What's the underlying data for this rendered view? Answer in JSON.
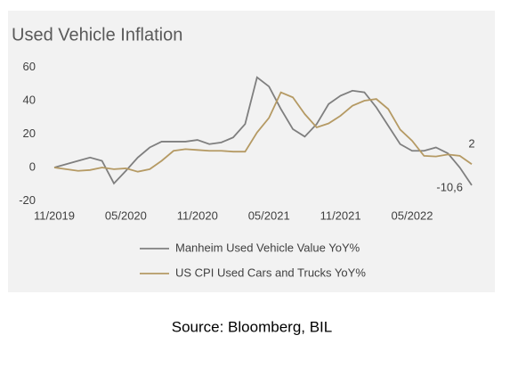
{
  "chart_data": {
    "type": "line",
    "title": "Used Vehicle Inflation",
    "categories": [
      "11/2019",
      null,
      null,
      null,
      null,
      null,
      "05/2020",
      null,
      null,
      null,
      null,
      null,
      "11/2020",
      null,
      null,
      null,
      null,
      null,
      "05/2021",
      null,
      null,
      null,
      null,
      null,
      "11/2021",
      null,
      null,
      null,
      null,
      null,
      "05/2022",
      null,
      null,
      null,
      null,
      null
    ],
    "series": [
      {
        "name": "Manheim Used Vehicle Value YoY%",
        "color": "#7f7f7f",
        "values": [
          0,
          2,
          4,
          6,
          4,
          -9.5,
          -2,
          6,
          12,
          15.5,
          15.5,
          15.5,
          16.5,
          14,
          15,
          18,
          26,
          54,
          48.5,
          35,
          23,
          18.5,
          26,
          38,
          43,
          46,
          45,
          36,
          25,
          14,
          10,
          10,
          12,
          8.5,
          0,
          -10.6
        ],
        "value_labels": [
          null,
          null,
          null,
          null,
          null,
          null,
          null,
          null,
          null,
          null,
          null,
          null,
          null,
          null,
          null,
          null,
          null,
          null,
          null,
          null,
          null,
          null,
          null,
          null,
          null,
          null,
          null,
          null,
          null,
          null,
          null,
          null,
          null,
          null,
          null,
          "-10,6"
        ]
      },
      {
        "name": "US CPI Used Cars and Trucks YoY%",
        "color": "#b59a64",
        "values": [
          0,
          -1,
          -2,
          -1.5,
          0,
          -1,
          -0.5,
          -2.5,
          -1,
          4,
          10,
          11,
          10.5,
          10,
          10,
          9.5,
          9.5,
          21,
          29.7,
          45,
          42,
          32,
          24,
          26.4,
          31,
          37,
          40,
          41,
          35,
          22.7,
          16,
          7,
          6.6,
          7.8,
          7,
          2
        ]
      }
    ],
    "ylim": [
      -20,
      60
    ],
    "yticks": [
      -20,
      0,
      20,
      40,
      60
    ],
    "grid": false
  },
  "source": "Source: Bloomberg, BIL"
}
